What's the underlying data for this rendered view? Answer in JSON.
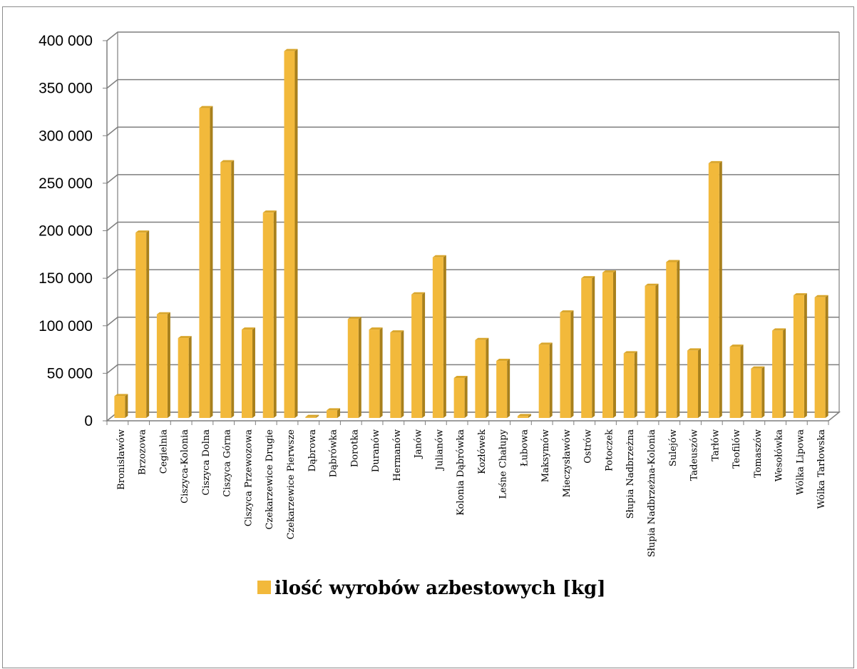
{
  "chart_data": {
    "type": "bar",
    "title": "",
    "xlabel": "",
    "ylabel": "",
    "ylim": [
      0,
      400000
    ],
    "yticks": [
      0,
      50000,
      100000,
      150000,
      200000,
      250000,
      300000,
      350000,
      400000
    ],
    "ytick_labels": [
      "0",
      "50 000",
      "100 000",
      "150 000",
      "200 000",
      "250 000",
      "300 000",
      "350 000",
      "400 000"
    ],
    "grid": true,
    "legend_position": "bottom",
    "categories": [
      "Bronisławów",
      "Brzozowa",
      "Cegielnia",
      "Ciszyca-Kolonia",
      "Ciszyca Dolna",
      "Ciszyca Górna",
      "Ciszyca Przewozowa",
      "Czekarzewice Drugie",
      "Czekarzewice Pierwsze",
      "Dąbrowa",
      "Dąbrówka",
      "Dorotka",
      "Duranów",
      "Hermanów",
      "Janów",
      "Julianów",
      "Kolonia Dąbrówka",
      "Kozłówek",
      "Leśne Chałupy",
      "Łubowa",
      "Maksymów",
      "Mieczysławów",
      "Ostrów",
      "Potoczek",
      "Słupia Nadbrzeżna",
      "Słupia Nadbrzeżna-Kolonia",
      "Sulejów",
      "Tadeuszów",
      "Tarłów",
      "Teofilów",
      "Tomaszów",
      "Wesołówka",
      "Wólka Lipowa",
      "Wólka Tarłowska"
    ],
    "series": [
      {
        "name": "ilość wyrobów azbestowych [kg]",
        "color": "#f2b93b",
        "values": [
          26000,
          198000,
          112000,
          87000,
          329000,
          272000,
          96000,
          219000,
          389000,
          4000,
          11000,
          107000,
          96000,
          93000,
          133000,
          172000,
          45000,
          85000,
          63000,
          5000,
          80000,
          114000,
          150000,
          156000,
          71000,
          142000,
          167000,
          74000,
          271000,
          78000,
          55000,
          95000,
          132000,
          130000
        ]
      }
    ]
  }
}
